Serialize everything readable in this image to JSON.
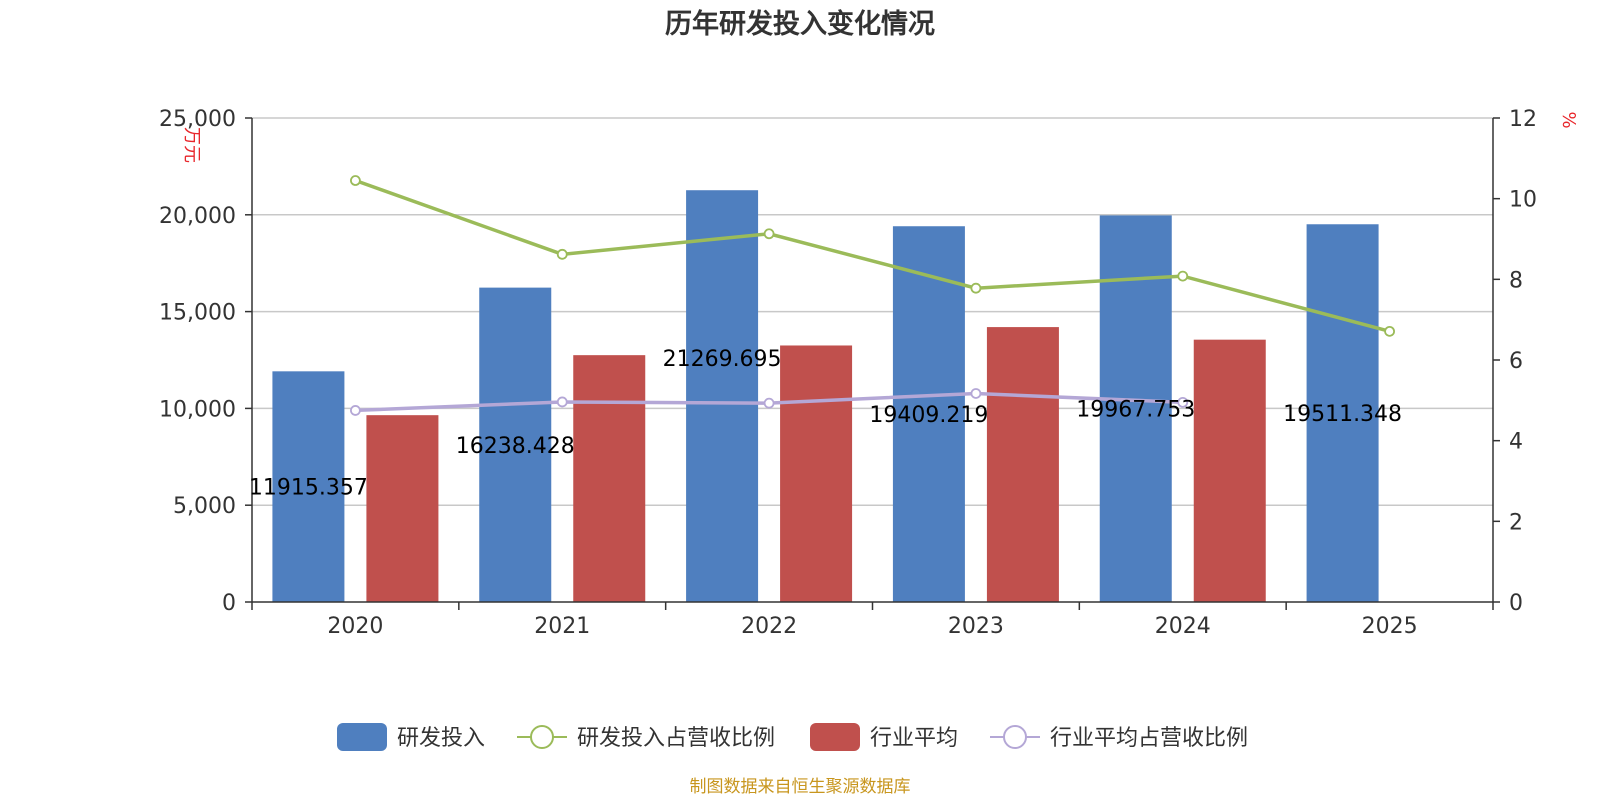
{
  "chart_data": {
    "type": "bar",
    "title": "历年研发投入变化情况",
    "categories": [
      "2020",
      "2021",
      "2022",
      "2023",
      "2024",
      "2025"
    ],
    "y_left": {
      "unit": "万元",
      "ylim": [
        0,
        25000
      ],
      "ticks": [
        "0",
        "5,000",
        "10,000",
        "15,000",
        "20,000",
        "25,000"
      ]
    },
    "y_right": {
      "unit": "%",
      "ylim": [
        0,
        12
      ],
      "ticks": [
        "0",
        "2",
        "4",
        "6",
        "8",
        "10",
        "12"
      ]
    },
    "grid": true,
    "legend_position": "bottom",
    "series": [
      {
        "name": "研发投入",
        "type": "bar",
        "axis": "left",
        "color": "#4f7fbf",
        "values": [
          11915.357,
          16238.428,
          21269.695,
          19409.219,
          19967.753,
          19511.348
        ],
        "labels": [
          "11915.357",
          "16238.428",
          "21269.695",
          "19409.219",
          "19967.753",
          "19511.348"
        ]
      },
      {
        "name": "研发投入占营收比例",
        "type": "line",
        "axis": "right",
        "color": "#9bbb59",
        "values": [
          10.45,
          8.62,
          9.13,
          7.78,
          8.08,
          6.71
        ]
      },
      {
        "name": "行业平均",
        "type": "bar",
        "axis": "left",
        "color": "#c0504d",
        "values": [
          9650,
          12750,
          13250,
          14200,
          13550,
          null
        ]
      },
      {
        "name": "行业平均占营收比例",
        "type": "line",
        "axis": "right",
        "color": "#b4a7d6",
        "values": [
          4.75,
          4.96,
          4.93,
          5.17,
          4.95,
          null
        ]
      }
    ]
  },
  "source": "制图数据来自恒生聚源数据库"
}
